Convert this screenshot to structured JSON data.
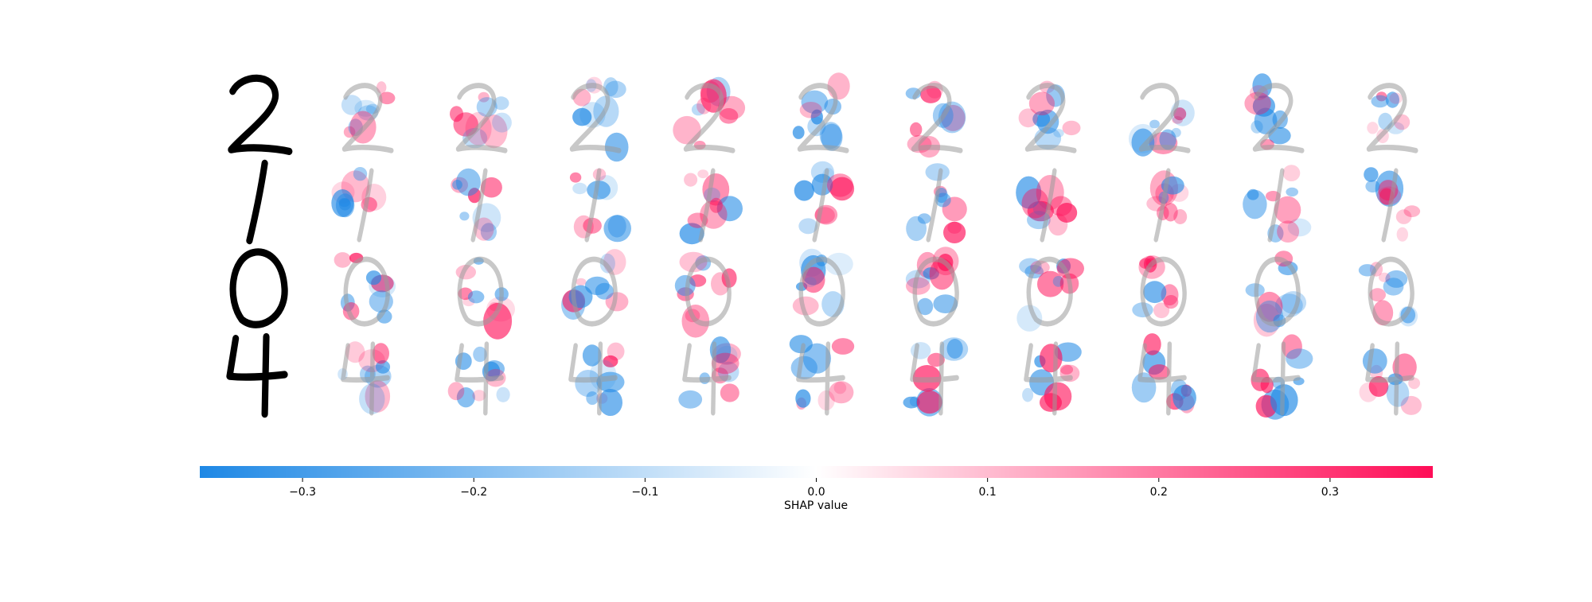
{
  "chart_data": {
    "type": "heatmap",
    "title": "",
    "subtitle": "",
    "description_rows": [
      "2",
      "1",
      "0",
      "4"
    ],
    "input_digits": [
      "2",
      "1",
      "0",
      "4"
    ],
    "explanation_columns": 10,
    "colorbar": {
      "label": "SHAP value",
      "min": -0.36,
      "max": 0.36,
      "ticks": [
        -0.3,
        -0.2,
        -0.1,
        0.0,
        0.1,
        0.2,
        0.3
      ],
      "tick_labels": [
        "−0.3",
        "−0.2",
        "−0.1",
        "0.0",
        "0.1",
        "0.2",
        "0.3"
      ],
      "color_negative": "#1e88e5",
      "color_zero": "#ffffff",
      "color_positive": "#ff0d57"
    },
    "overlay_color": "#9a9a9a",
    "input_color": "#000000"
  }
}
